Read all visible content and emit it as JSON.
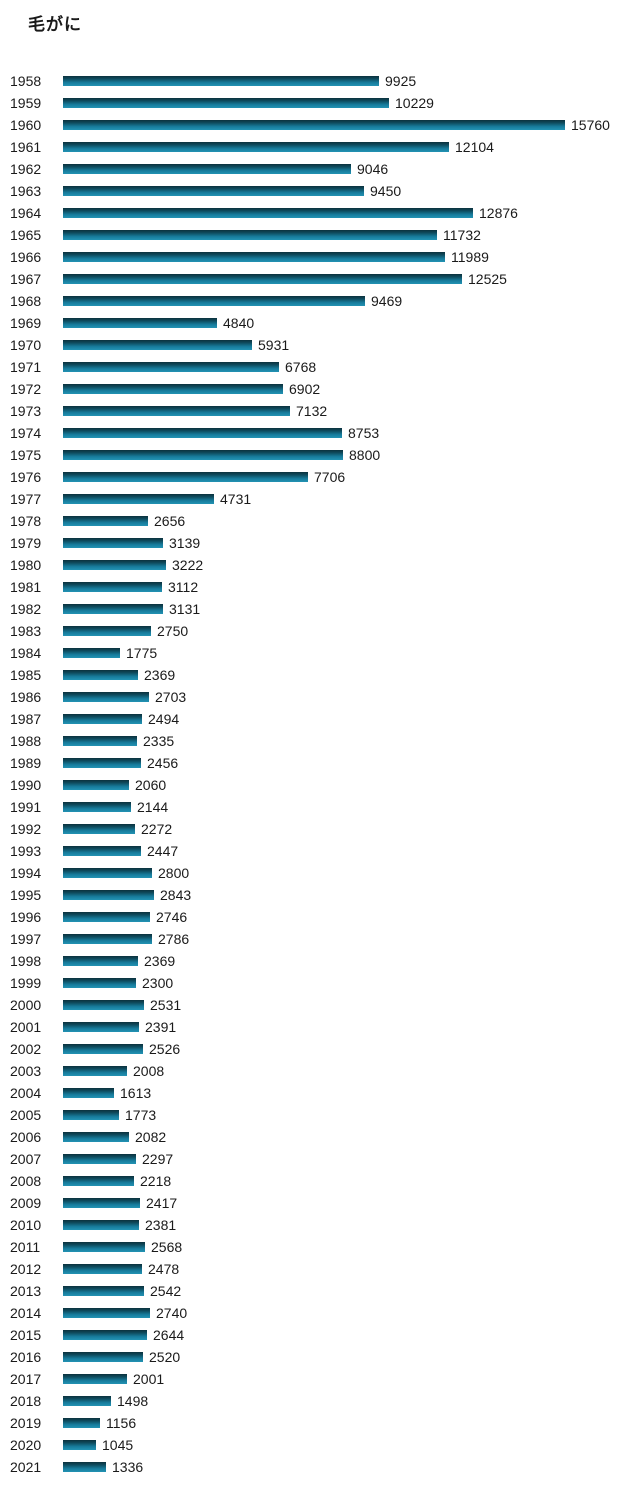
{
  "title": "毛がに",
  "chart_data": {
    "type": "bar",
    "orientation": "horizontal",
    "title": "毛がに",
    "xlabel": "",
    "ylabel": "",
    "xlim": [
      0,
      15760
    ],
    "grid": false,
    "legend": "none",
    "bar_color_top": "#0b313d",
    "bar_color_bottom": "#2393b4",
    "text_color": "#1a1a1a",
    "value_labels_shown": true,
    "categories": [
      "1958",
      "1959",
      "1960",
      "1961",
      "1962",
      "1963",
      "1964",
      "1965",
      "1966",
      "1967",
      "1968",
      "1969",
      "1970",
      "1971",
      "1972",
      "1973",
      "1974",
      "1975",
      "1976",
      "1977",
      "1978",
      "1979",
      "1980",
      "1981",
      "1982",
      "1983",
      "1984",
      "1985",
      "1986",
      "1987",
      "1988",
      "1989",
      "1990",
      "1991",
      "1992",
      "1993",
      "1994",
      "1995",
      "1996",
      "1997",
      "1998",
      "1999",
      "2000",
      "2001",
      "2002",
      "2003",
      "2004",
      "2005",
      "2006",
      "2007",
      "2008",
      "2009",
      "2010",
      "2011",
      "2012",
      "2013",
      "2014",
      "2015",
      "2016",
      "2017",
      "2018",
      "2019",
      "2020",
      "2021"
    ],
    "values": [
      9925,
      10229,
      15760,
      12104,
      9046,
      9450,
      12876,
      11732,
      11989,
      12525,
      9469,
      4840,
      5931,
      6768,
      6902,
      7132,
      8753,
      8800,
      7706,
      4731,
      2656,
      3139,
      3222,
      3112,
      3131,
      2750,
      1775,
      2369,
      2703,
      2494,
      2335,
      2456,
      2060,
      2144,
      2272,
      2447,
      2800,
      2843,
      2746,
      2786,
      2369,
      2300,
      2531,
      2391,
      2526,
      2008,
      1613,
      1773,
      2082,
      2297,
      2218,
      2417,
      2381,
      2568,
      2478,
      2542,
      2740,
      2644,
      2520,
      2001,
      1498,
      1156,
      1045,
      1336
    ]
  }
}
